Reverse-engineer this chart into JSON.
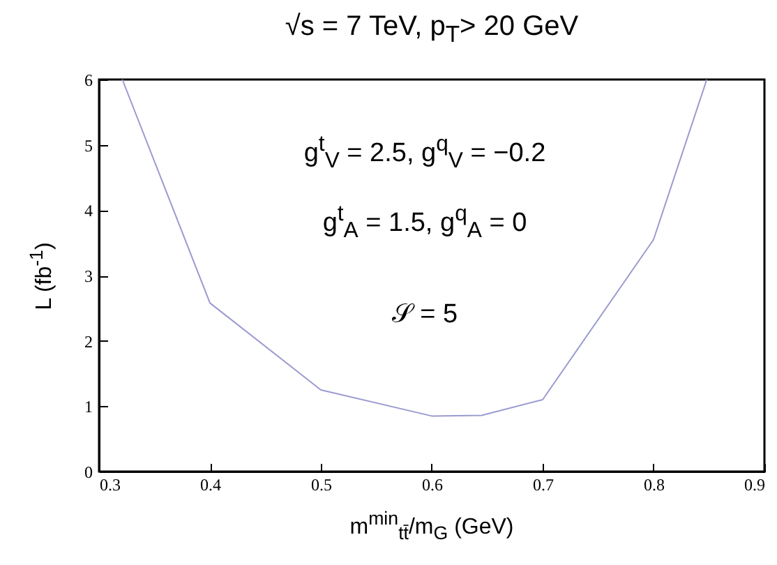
{
  "chart_data": {
    "type": "line",
    "title": "√s = 7 TeV, p$_{T}$> 20 GeV",
    "xlabel": "m$^{min}$$_{tt̄}$/m$_{G}$ (GeV)",
    "ylabel": "L (fb$^{-1}$)",
    "annotations": [
      "g$^{t}$$_{V}$ = 2.5, g$^{q}$$_{V}$ = −0.2",
      "g$^{t}$$_{A}$ = 1.5, g$^{q}$$_{A}$ = 0",
      "𝒮 = 5"
    ],
    "x": [
      0.321,
      0.4,
      0.5,
      0.6,
      0.645,
      0.7,
      0.8,
      0.848
    ],
    "series": [
      {
        "color": "#9a9ad0",
        "values": [
          6,
          2.58,
          1.25,
          0.85,
          0.86,
          1.1,
          3.55,
          6
        ]
      }
    ],
    "xlim": [
      0.3,
      0.9
    ],
    "xticks": [
      0.3,
      0.4,
      0.5,
      0.6,
      0.7,
      0.8,
      0.9
    ],
    "ylim": [
      0,
      6
    ],
    "yticks": [
      0,
      1,
      2,
      3,
      4,
      5,
      6
    ],
    "grid": false,
    "marker": "none",
    "line_style": "solid"
  }
}
